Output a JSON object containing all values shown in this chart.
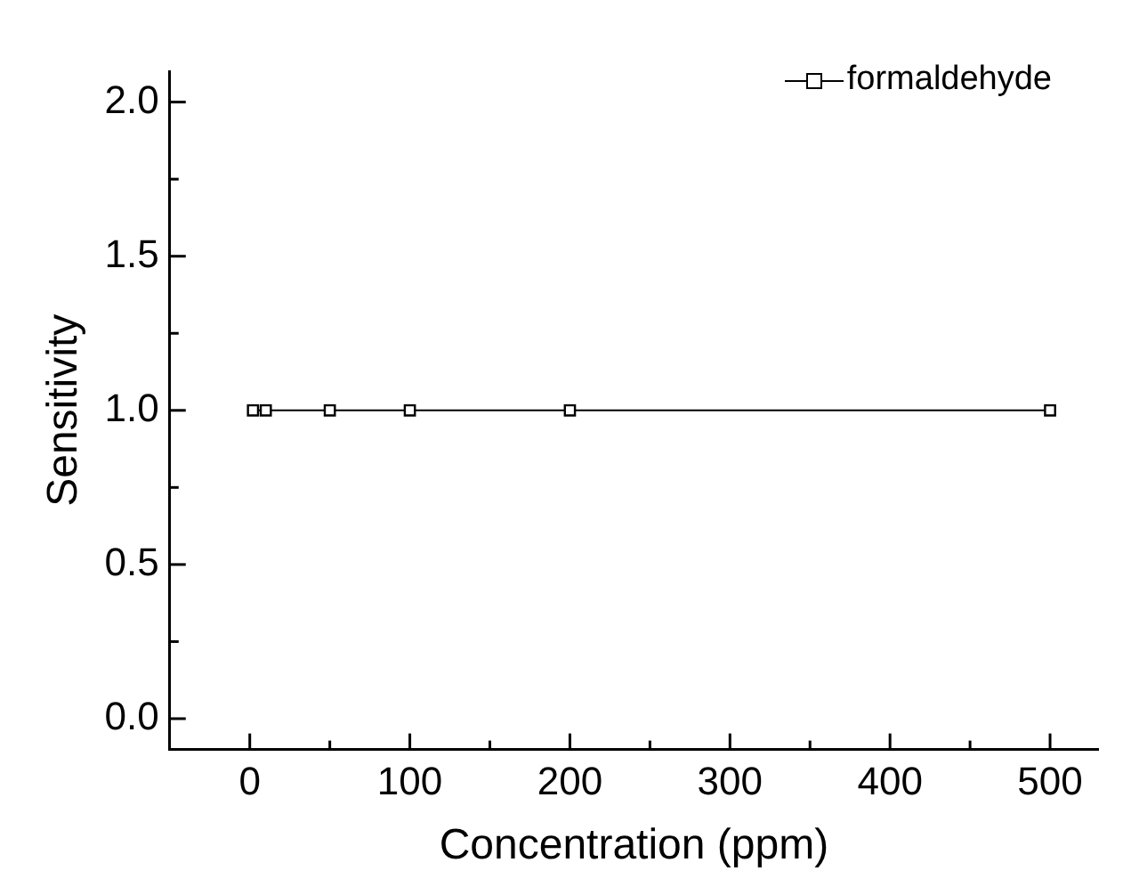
{
  "chart_data": {
    "type": "line",
    "xlabel": "Concentration (ppm)",
    "ylabel": "Sensitivity",
    "xlim": [
      -50,
      530
    ],
    "xticks": [
      0,
      {
        "value": 50,
        "label": null
      },
      100,
      {
        "value": 150,
        "label": null
      },
      200,
      {
        "value": 250,
        "label": null
      },
      300,
      {
        "value": 350,
        "label": null
      },
      400,
      {
        "value": 450,
        "label": null
      },
      500
    ],
    "ylim": [
      -0.1,
      2.1
    ],
    "yticks": [
      {
        "value": 0,
        "label": "0.0"
      },
      {
        "value": 0.25,
        "label": null
      },
      {
        "value": 0.5,
        "label": "0.5"
      },
      {
        "value": 0.75,
        "label": null
      },
      {
        "value": 1,
        "label": "1.0"
      },
      {
        "value": 1.25,
        "label": null
      },
      {
        "value": 1.5,
        "label": "1.5"
      },
      {
        "value": 1.75,
        "label": null
      },
      {
        "value": 2,
        "label": "2.0"
      }
    ],
    "series": [
      {
        "name": "formaldehyde",
        "color": "#000000",
        "x": [
          2,
          10,
          50,
          100,
          200,
          500
        ],
        "values": [
          1,
          1,
          1,
          1,
          1,
          1
        ]
      }
    ],
    "marker": "square",
    "line_style": "solid",
    "legend": "top right",
    "grid": false
  }
}
